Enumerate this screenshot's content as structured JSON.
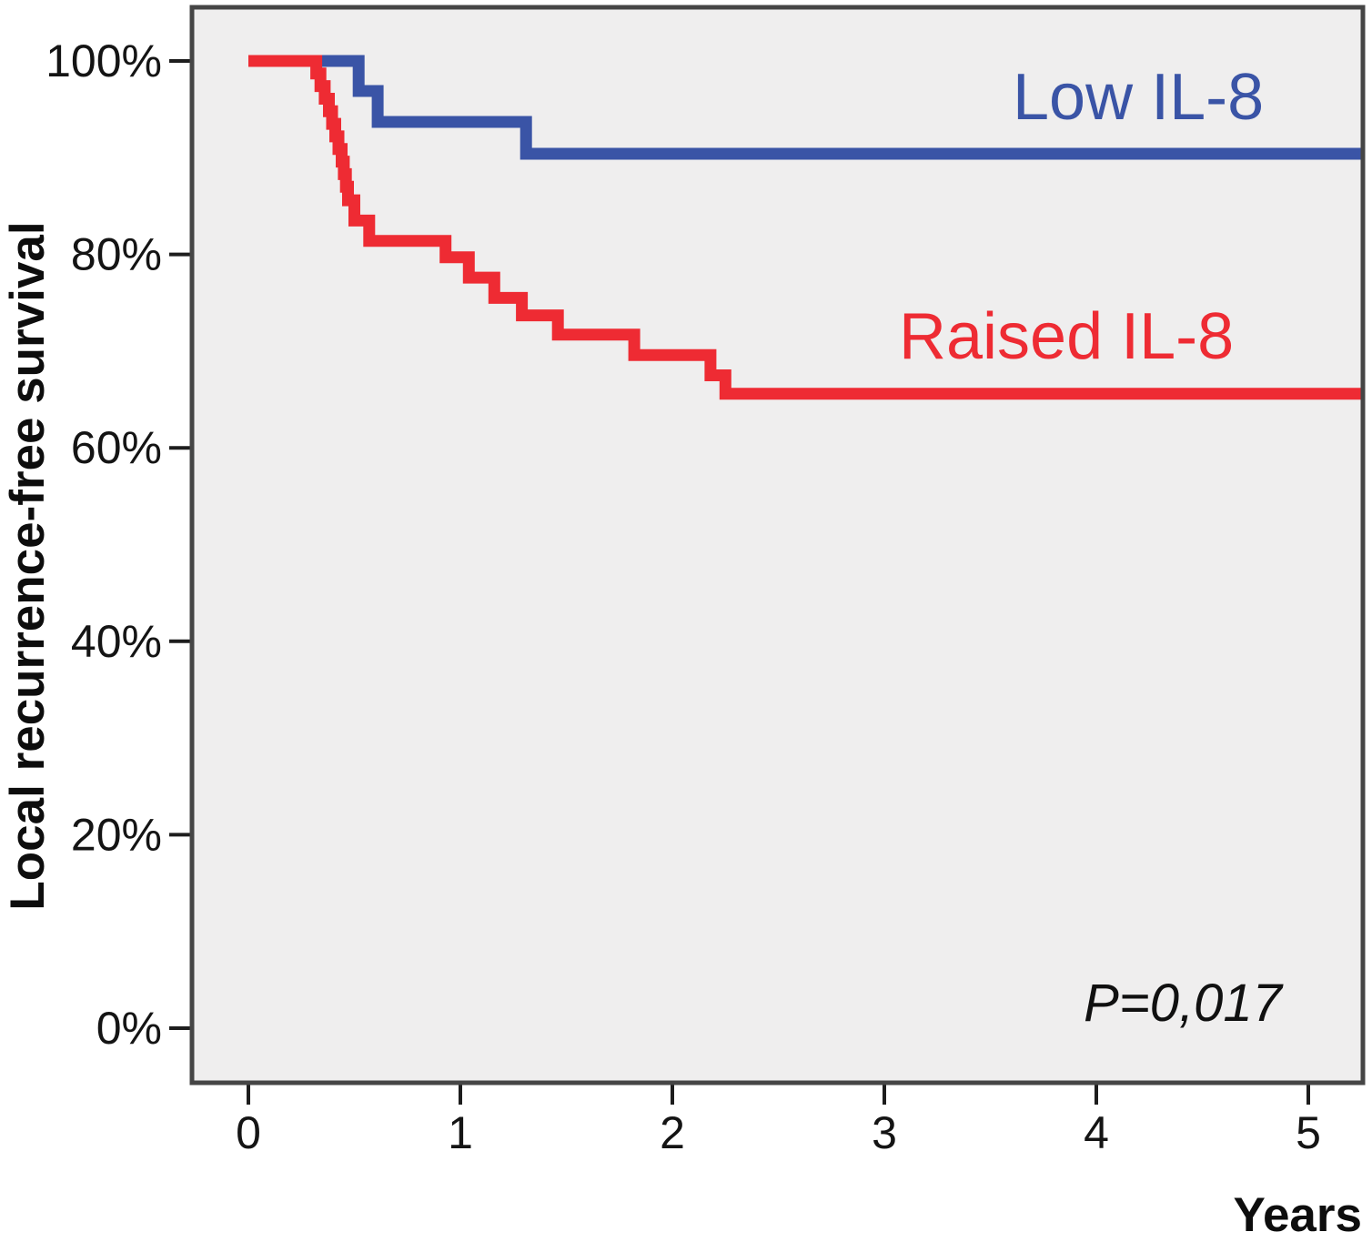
{
  "chart_data": {
    "type": "line",
    "subtype": "kaplan_meier_step_plot",
    "title": "",
    "xlabel": "Years",
    "ylabel": "Local recurrence-free survival",
    "annotation": {
      "text": "P=0,017"
    },
    "grid": false,
    "legend_position": "inline-labels-on-plot",
    "xlim": [
      -0.27,
      5.26
    ],
    "ylim_percent": [
      -5.6,
      105.5
    ],
    "x_ticks": {
      "values": [
        0,
        1,
        2,
        3,
        4,
        5
      ],
      "labels": [
        "0",
        "1",
        "2",
        "3",
        "4",
        "5"
      ]
    },
    "y_ticks": {
      "values": [
        100,
        80,
        60,
        40,
        20,
        0
      ],
      "labels": [
        "100%",
        "80%",
        "60%",
        "40%",
        "20%",
        "0%"
      ]
    },
    "colors": {
      "low_il8": "#3A54A6",
      "raised_il8": "#EE2B33",
      "plot_background": "#EFEEEE",
      "plot_frame": "#454545",
      "axis_text": "#141414"
    },
    "series": [
      {
        "name": "Low IL-8",
        "color": "#3A54A6",
        "start_survival_pct": 100,
        "end_time_years": 5.26,
        "drops_time_survival_pct": [
          [
            0.52,
            96.9
          ],
          [
            0.61,
            93.7
          ],
          [
            1.31,
            90.4
          ]
        ],
        "final_survival_pct": 90.4
      },
      {
        "name": "Raised IL-8",
        "color": "#EE2B33",
        "start_survival_pct": 100,
        "end_time_years": 5.26,
        "drops_time_survival_pct": [
          [
            0.32,
            98.7
          ],
          [
            0.34,
            97.4
          ],
          [
            0.36,
            96.1
          ],
          [
            0.38,
            94.8
          ],
          [
            0.395,
            93.5
          ],
          [
            0.41,
            92.2
          ],
          [
            0.425,
            90.9
          ],
          [
            0.44,
            89.6
          ],
          [
            0.45,
            88.3
          ],
          [
            0.46,
            87.0
          ],
          [
            0.47,
            85.6
          ],
          [
            0.5,
            83.5
          ],
          [
            0.57,
            81.4
          ],
          [
            0.93,
            79.7
          ],
          [
            1.04,
            77.6
          ],
          [
            1.16,
            75.5
          ],
          [
            1.29,
            73.7
          ],
          [
            1.46,
            71.7
          ],
          [
            1.82,
            69.6
          ],
          [
            2.18,
            67.5
          ],
          [
            2.25,
            65.6
          ]
        ],
        "final_survival_pct": 65.6
      }
    ]
  }
}
